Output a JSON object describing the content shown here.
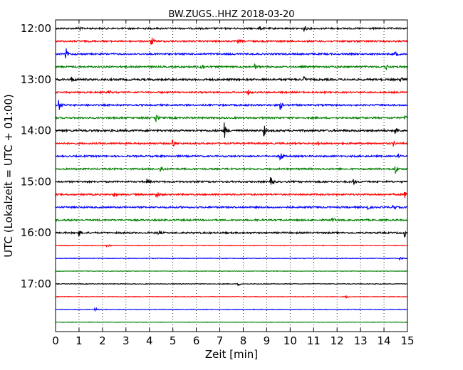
{
  "chart_data": {
    "type": "line",
    "title": "BW.ZUGS..HHZ 2018-03-20",
    "xlabel": "Zeit  [min]",
    "ylabel": "UTC (Lokalzeit = UTC + 01:00)",
    "xlim": [
      0,
      15
    ],
    "x_ticks": [
      "0",
      "1",
      "2",
      "3",
      "4",
      "5",
      "6",
      "7",
      "8",
      "9",
      "10",
      "11",
      "12",
      "13",
      "14",
      "15"
    ],
    "y_ticks": [
      "12:00",
      "13:00",
      "14:00",
      "15:00",
      "16:00",
      "17:00"
    ],
    "grid": "vertical dotted",
    "trace_colors": [
      "#000000",
      "#ff0000",
      "#0000ff",
      "#008000"
    ],
    "series": [
      {
        "start": "12:00",
        "color": "#000000",
        "amplitude": 1.0,
        "events": [
          [
            10.6,
            2.0
          ],
          [
            8.7,
            1.2
          ],
          [
            1.0,
            1.0
          ]
        ]
      },
      {
        "start": "12:15",
        "color": "#ff0000",
        "amplitude": 1.0,
        "events": [
          [
            4.1,
            2.5
          ],
          [
            7.8,
            1.0
          ]
        ]
      },
      {
        "start": "12:30",
        "color": "#0000ff",
        "amplitude": 1.0,
        "events": [
          [
            0.45,
            3.5
          ],
          [
            14.5,
            2.0
          ]
        ]
      },
      {
        "start": "12:45",
        "color": "#008000",
        "amplitude": 1.0,
        "events": [
          [
            6.2,
            3.0
          ],
          [
            8.5,
            1.5
          ],
          [
            14.1,
            1.5
          ]
        ]
      },
      {
        "start": "13:00",
        "color": "#000000",
        "amplitude": 1.2,
        "events": [
          [
            0.7,
            1.5
          ],
          [
            10.6,
            1.5
          ],
          [
            14.7,
            1.5
          ]
        ]
      },
      {
        "start": "13:15",
        "color": "#ff0000",
        "amplitude": 1.0,
        "events": [
          [
            2.3,
            1.2
          ],
          [
            8.2,
            2.0
          ]
        ]
      },
      {
        "start": "13:30",
        "color": "#0000ff",
        "amplitude": 1.0,
        "events": [
          [
            0.15,
            3.5
          ],
          [
            9.6,
            2.5
          ]
        ]
      },
      {
        "start": "13:45",
        "color": "#008000",
        "amplitude": 1.0,
        "events": [
          [
            4.3,
            2.0
          ],
          [
            14.9,
            1.5
          ]
        ]
      },
      {
        "start": "14:00",
        "color": "#000000",
        "amplitude": 1.2,
        "events": [
          [
            7.2,
            5.0
          ],
          [
            8.9,
            3.0
          ],
          [
            14.5,
            3.0
          ]
        ]
      },
      {
        "start": "14:15",
        "color": "#ff0000",
        "amplitude": 1.0,
        "events": [
          [
            5.0,
            3.0
          ],
          [
            11.2,
            1.5
          ],
          [
            14.4,
            1.5
          ]
        ]
      },
      {
        "start": "14:30",
        "color": "#0000ff",
        "amplitude": 1.0,
        "events": [
          [
            9.6,
            3.0
          ],
          [
            14.6,
            1.2
          ]
        ]
      },
      {
        "start": "14:45",
        "color": "#008000",
        "amplitude": 1.0,
        "events": [
          [
            4.5,
            2.5
          ],
          [
            14.5,
            3.0
          ]
        ]
      },
      {
        "start": "15:00",
        "color": "#000000",
        "amplitude": 1.0,
        "events": [
          [
            9.2,
            2.5
          ],
          [
            12.7,
            2.0
          ],
          [
            3.9,
            1.5
          ]
        ]
      },
      {
        "start": "15:15",
        "color": "#ff0000",
        "amplitude": 1.0,
        "events": [
          [
            4.3,
            2.5
          ],
          [
            14.9,
            2.0
          ],
          [
            2.5,
            1.2
          ]
        ]
      },
      {
        "start": "15:30",
        "color": "#0000ff",
        "amplitude": 1.0,
        "events": [
          [
            14.4,
            3.0
          ],
          [
            13.3,
            1.5
          ]
        ]
      },
      {
        "start": "15:45",
        "color": "#008000",
        "amplitude": 1.0,
        "events": [
          [
            11.8,
            1.0
          ]
        ]
      },
      {
        "start": "16:00",
        "color": "#000000",
        "amplitude": 1.0,
        "events": [
          [
            1.0,
            2.0
          ],
          [
            4.4,
            1.2
          ],
          [
            14.9,
            2.5
          ]
        ]
      },
      {
        "start": "16:15",
        "color": "#ff0000",
        "amplitude": 0.4,
        "events": [
          [
            2.2,
            1.0
          ]
        ]
      },
      {
        "start": "16:30",
        "color": "#0000ff",
        "amplitude": 0.4,
        "events": [
          [
            14.7,
            1.0
          ]
        ]
      },
      {
        "start": "16:45",
        "color": "#008000",
        "amplitude": 0.3,
        "events": []
      },
      {
        "start": "17:00",
        "color": "#000000",
        "amplitude": 0.4,
        "events": [
          [
            7.8,
            1.0
          ]
        ]
      },
      {
        "start": "17:15",
        "color": "#ff0000",
        "amplitude": 0.4,
        "events": [
          [
            12.4,
            0.8
          ]
        ]
      },
      {
        "start": "17:30",
        "color": "#0000ff",
        "amplitude": 0.4,
        "events": [
          [
            1.7,
            1.2
          ]
        ]
      },
      {
        "start": "17:45",
        "color": "#008000",
        "amplitude": 0.3,
        "events": []
      }
    ]
  }
}
